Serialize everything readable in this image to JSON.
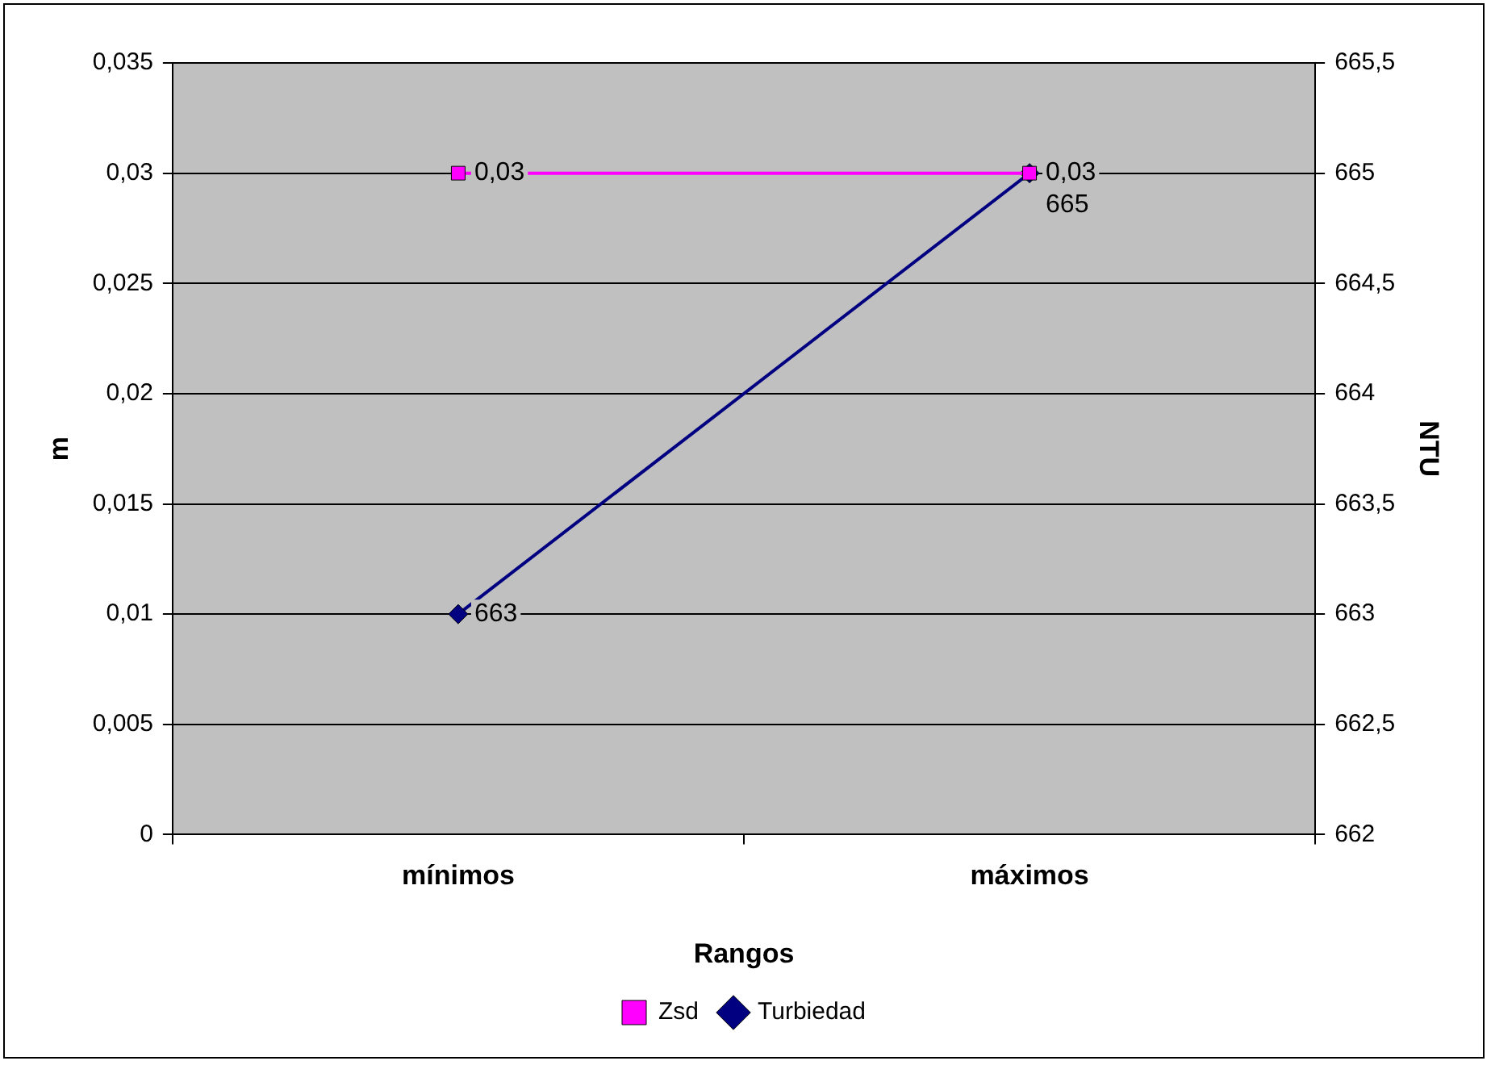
{
  "chart_data": {
    "type": "line",
    "xlabel": "Rangos",
    "ylabel": "m",
    "y2label": "NTU",
    "categories": [
      "mínimos",
      "máximos"
    ],
    "series": [
      {
        "name": "Zsd",
        "color": "#ff00ff",
        "values": [
          0.03,
          0.03
        ],
        "marker": "square",
        "value_labels": [
          "0,03",
          "0,03"
        ]
      },
      {
        "name": "Turbiedad",
        "color": "#000080",
        "values": [
          663,
          665
        ],
        "axis": "y2",
        "marker": "diamond",
        "value_labels": [
          "663",
          "665"
        ]
      }
    ],
    "ylim": [
      0,
      0.035
    ],
    "yticks": [
      {
        "value": 0,
        "label": "0"
      },
      {
        "value": 0.005,
        "label": "0,005"
      },
      {
        "value": 0.01,
        "label": "0,01"
      },
      {
        "value": 0.015,
        "label": "0,015"
      },
      {
        "value": 0.02,
        "label": "0,02"
      },
      {
        "value": 0.025,
        "label": "0,025"
      },
      {
        "value": 0.03,
        "label": "0,03"
      },
      {
        "value": 0.035,
        "label": "0,035"
      }
    ],
    "y2lim": [
      662,
      665.5
    ],
    "y2ticks": [
      662,
      {
        "value": 662.5,
        "label": "662,5"
      },
      663,
      {
        "value": 663.5,
        "label": "663,5"
      },
      664,
      {
        "value": 664.5,
        "label": "664,5"
      },
      665,
      {
        "value": 665.5,
        "label": "665,5"
      }
    ],
    "grid": "y",
    "legend": "bottom"
  }
}
